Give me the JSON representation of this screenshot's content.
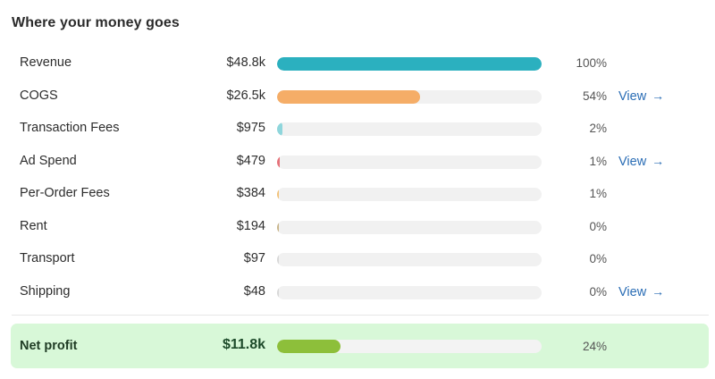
{
  "title": "Where your money goes",
  "rows": [
    {
      "label": "Revenue",
      "amount": "$48.8k",
      "percent_label": "100%",
      "fraction": 1.0,
      "color": "#2bb0bf",
      "view": ""
    },
    {
      "label": "COGS",
      "amount": "$26.5k",
      "percent_label": "54%",
      "fraction": 0.54,
      "color": "#f5ad67",
      "view": "View"
    },
    {
      "label": "Transaction Fees",
      "amount": "$975",
      "percent_label": "2%",
      "fraction": 0.02,
      "color": "#8fd6dc",
      "view": ""
    },
    {
      "label": "Ad Spend",
      "amount": "$479",
      "percent_label": "1%",
      "fraction": 0.01,
      "color": "#e6737b",
      "view": "View"
    },
    {
      "label": "Per-Order Fees",
      "amount": "$384",
      "percent_label": "1%",
      "fraction": 0.008,
      "color": "#f2c27a",
      "view": ""
    },
    {
      "label": "Rent",
      "amount": "$194",
      "percent_label": "0%",
      "fraction": 0.004,
      "color": "#c9b58a",
      "view": ""
    },
    {
      "label": "Transport",
      "amount": "$97",
      "percent_label": "0%",
      "fraction": 0.002,
      "color": "#d8d8d8",
      "view": ""
    },
    {
      "label": "Shipping",
      "amount": "$48",
      "percent_label": "0%",
      "fraction": 0.001,
      "color": "#d8d8d8",
      "view": "View"
    }
  ],
  "net": {
    "label": "Net profit",
    "amount": "$11.8k",
    "percent_label": "24%",
    "fraction": 0.24,
    "color": "#8dbf3a"
  },
  "view_arrow": "→",
  "colors": {
    "link": "#2a6db5",
    "net_background": "#d8f8d8",
    "track": "#f1f1f1"
  }
}
